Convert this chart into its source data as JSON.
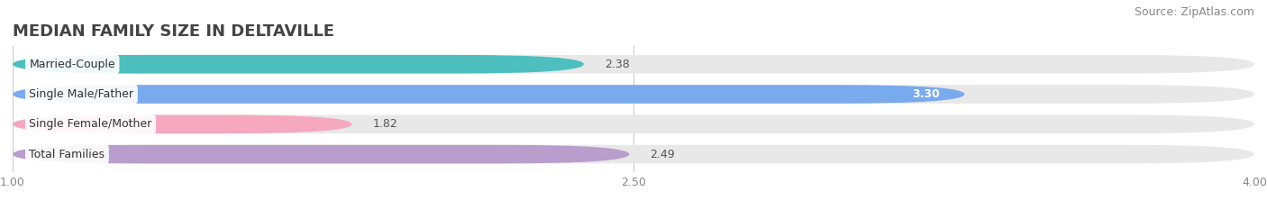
{
  "title": "MEDIAN FAMILY SIZE IN DELTAVILLE",
  "source": "Source: ZipAtlas.com",
  "categories": [
    "Married-Couple",
    "Single Male/Father",
    "Single Female/Mother",
    "Total Families"
  ],
  "values": [
    2.38,
    3.3,
    1.82,
    2.49
  ],
  "bar_colors": [
    "#4dbfbf",
    "#7aaaee",
    "#f5a8c0",
    "#b99dcc"
  ],
  "track_color": "#e8e8e8",
  "xlim": [
    1.0,
    4.0
  ],
  "xticks": [
    1.0,
    2.5,
    4.0
  ],
  "xticklabels": [
    "1.00",
    "2.50",
    "4.00"
  ],
  "label_fontsize": 9,
  "value_fontsize": 9,
  "title_fontsize": 13,
  "source_fontsize": 9,
  "background_color": "#ffffff",
  "bar_height": 0.62,
  "value_inside": [
    false,
    true,
    false,
    false
  ],
  "value_inside_color": [
    "#333333",
    "#ffffff",
    "#333333",
    "#333333"
  ]
}
